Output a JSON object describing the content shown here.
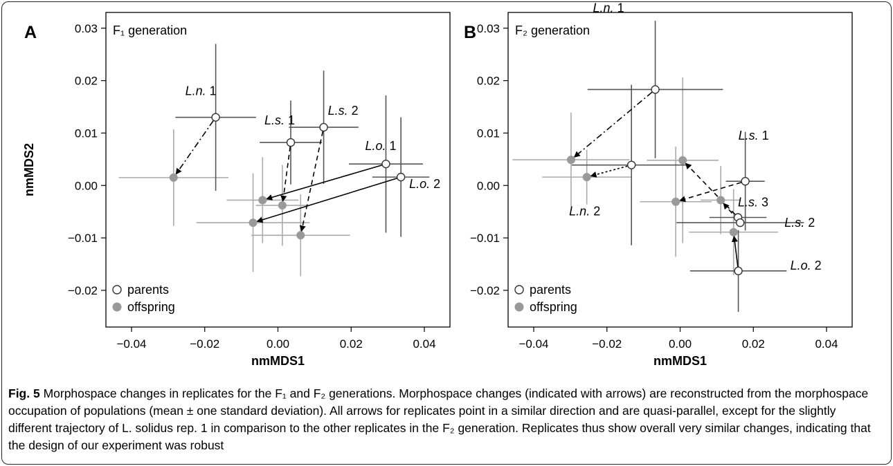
{
  "chart_data": [
    {
      "type": "scatter",
      "panel": "A",
      "inset_label": "F₁ generation",
      "xlabel": "nmMDS1",
      "ylabel": "nmMDS2",
      "xlim": [
        -0.047,
        0.047
      ],
      "ylim": [
        -0.027,
        0.033
      ],
      "xticks": [
        "−0.04",
        "−0.02",
        "0.00",
        "0.02",
        "0.04"
      ],
      "xtick_values": [
        -0.04,
        -0.02,
        0.0,
        0.02,
        0.04
      ],
      "yticks": [
        "0.03",
        "0.02",
        "0.01",
        "0.00",
        "−0.01",
        "−0.02"
      ],
      "ytick_values": [
        0.03,
        0.02,
        0.01,
        0.0,
        -0.01,
        -0.02
      ],
      "legend": [
        "parents",
        "offspring"
      ],
      "series": [
        {
          "name": "parents",
          "points": [
            {
              "label": "L.n. 1",
              "x": -0.017,
              "y": 0.013,
              "sx": 0.011,
              "sy": 0.014
            },
            {
              "label": "L.s. 1",
              "x": 0.0035,
              "y": 0.0082,
              "sx": 0.0085,
              "sy": 0.008
            },
            {
              "label": "L.s. 2",
              "x": 0.0125,
              "y": 0.0111,
              "sx": 0.0095,
              "sy": 0.0108
            },
            {
              "label": "L.o. 1",
              "x": 0.0295,
              "y": 0.0041,
              "sx": 0.0101,
              "sy": 0.0131
            },
            {
              "label": "L.o. 2",
              "x": 0.0336,
              "y": 0.0016,
              "sx": 0.0078,
              "sy": 0.0114
            }
          ]
        },
        {
          "name": "offspring",
          "points": [
            {
              "x": -0.0285,
              "y": 0.0015,
              "sx": 0.015,
              "sy": 0.0092
            },
            {
              "x": -0.0042,
              "y": -0.0028,
              "sx": 0.0098,
              "sy": 0.0082
            },
            {
              "x": 0.0012,
              "y": -0.0038,
              "sx": 0.0072,
              "sy": 0.0077
            },
            {
              "x": -0.0068,
              "y": -0.0071,
              "sx": 0.0155,
              "sy": 0.0094
            },
            {
              "x": 0.0062,
              "y": -0.0095,
              "sx": 0.0135,
              "sy": 0.0078
            }
          ]
        }
      ],
      "arrows": [
        {
          "from": 0,
          "to": 0,
          "style": "dashdot"
        },
        {
          "from": 1,
          "to": 2,
          "style": "dashed"
        },
        {
          "from": 2,
          "to": 4,
          "style": "dashed"
        },
        {
          "from": 3,
          "to": 1,
          "style": "solid"
        },
        {
          "from": 4,
          "to": 3,
          "style": "solid"
        }
      ]
    },
    {
      "type": "scatter",
      "panel": "B",
      "inset_label": "F₂ generation",
      "xlabel": "nmMDS1",
      "ylabel": "",
      "xlim": [
        -0.047,
        0.047
      ],
      "ylim": [
        -0.027,
        0.033
      ],
      "xticks": [
        "−0.04",
        "−0.02",
        "0.00",
        "0.02",
        "0.04"
      ],
      "xtick_values": [
        -0.04,
        -0.02,
        0.0,
        0.02,
        0.04
      ],
      "yticks": [
        "0.03",
        "0.02",
        "0.01",
        "0.00",
        "−0.01",
        "−0.02"
      ],
      "ytick_values": [
        0.03,
        0.02,
        0.01,
        0.0,
        -0.01,
        -0.02
      ],
      "legend": [
        "parents",
        "offspring"
      ],
      "series": [
        {
          "name": "parents",
          "points": [
            {
              "label": "L.n. 1",
              "x": -0.0068,
              "y": 0.0183,
              "sx": 0.0185,
              "sy": 0.0131
            },
            {
              "label": "L.n. 2",
              "x": -0.0133,
              "y": 0.0039,
              "sx": 0.0163,
              "sy": 0.0153
            },
            {
              "label": "L.s. 1",
              "x": 0.0178,
              "y": 0.0008,
              "sx": 0.0053,
              "sy": 0.0094
            },
            {
              "label": "L.s. 3",
              "x": 0.0158,
              "y": -0.0061,
              "sx": 0.0078,
              "sy": 0.0
            },
            {
              "label": "L.s. 2",
              "x": 0.0164,
              "y": -0.0071,
              "sx": 0.0174,
              "sy": 0.0
            },
            {
              "label": "L.o. 2",
              "x": 0.0159,
              "y": -0.0163,
              "sx": 0.0132,
              "sy": 0.0078
            }
          ]
        },
        {
          "name": "offspring",
          "points": [
            {
              "x": -0.0298,
              "y": 0.0049,
              "sx": 0.016,
              "sy": 0.009
            },
            {
              "x": -0.0255,
              "y": 0.0016,
              "sx": 0.0122,
              "sy": 0.0052
            },
            {
              "x": 0.0007,
              "y": 0.0048,
              "sx": 0.0098,
              "sy": 0.0158
            },
            {
              "x": -0.0012,
              "y": -0.0031,
              "sx": 0.0098,
              "sy": 0.0105
            },
            {
              "x": 0.0111,
              "y": -0.0028,
              "sx": 0.0055,
              "sy": 0.0065
            },
            {
              "x": 0.0146,
              "y": -0.0089,
              "sx": 0.0122,
              "sy": 0.0082
            }
          ]
        }
      ],
      "arrows": [
        {
          "from": 0,
          "to": 0,
          "style": "dashdot"
        },
        {
          "from": 1,
          "to": 1,
          "style": "dotted"
        },
        {
          "from": 2,
          "to": 3,
          "style": "dashed"
        },
        {
          "from": 3,
          "to": 2,
          "style": "dashed"
        },
        {
          "from": 4,
          "to": 4,
          "style": "dashed"
        },
        {
          "from": 5,
          "to": 5,
          "style": "solid"
        }
      ]
    }
  ],
  "caption": {
    "label": "Fig. 5",
    "text": " Morphospace changes in replicates for the F₁ and F₂ generations. Morphospace changes (indicated with arrows) are reconstructed from the morphospace occupation of populations (mean ± one standard deviation). All arrows for replicates point in a similar direction and are quasi-parallel, except for the slightly different trajectory of L. solidus rep. 1 in comparison to the other replicates in the F₂ generation. Replicates thus show overall very similar changes, indicating that the design of our experiment was robust"
  },
  "colors": {
    "parent_bar": "#555555",
    "offspring_bar": "#aaaaaa",
    "offspring_fill": "#999999"
  }
}
